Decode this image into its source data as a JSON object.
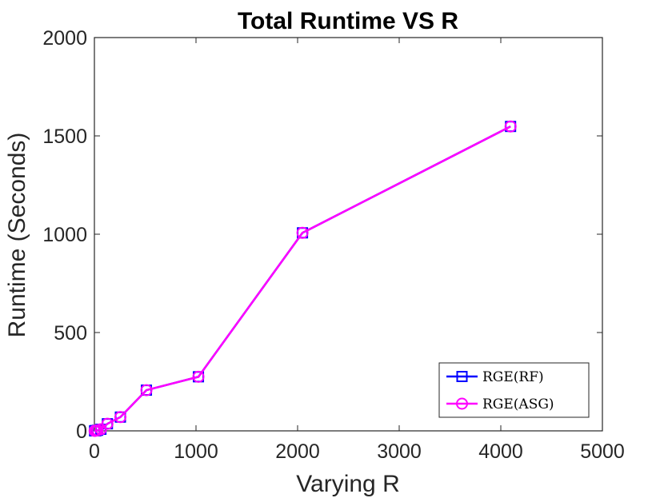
{
  "chart_data": {
    "type": "line",
    "title": "Total Runtime VS R",
    "xlabel": "Varying R",
    "ylabel": "Runtime (Seconds)",
    "xlim": [
      0,
      5000
    ],
    "ylim": [
      0,
      2000
    ],
    "xticks": [
      0,
      1000,
      2000,
      3000,
      4000,
      5000
    ],
    "yticks": [
      0,
      500,
      1000,
      1500,
      2000
    ],
    "grid": false,
    "legend_position": "bottom-right",
    "series": [
      {
        "name": "RGE(RF)",
        "color": "#0000ff",
        "marker": "square",
        "x": [
          2,
          4,
          8,
          16,
          32,
          64,
          128,
          256,
          512,
          1024,
          2048,
          4096
        ],
        "y": [
          0,
          0,
          1,
          1,
          3,
          8,
          36,
          70,
          207,
          275,
          1007,
          1548
        ]
      },
      {
        "name": "RGE(ASG)",
        "color": "#ff00ff",
        "marker": "circle",
        "x": [
          2,
          4,
          8,
          16,
          32,
          64,
          128,
          256,
          512,
          1024,
          2048,
          4096
        ],
        "y": [
          0,
          0,
          1,
          1,
          3,
          8,
          36,
          70,
          207,
          275,
          1007,
          1548
        ]
      }
    ]
  }
}
